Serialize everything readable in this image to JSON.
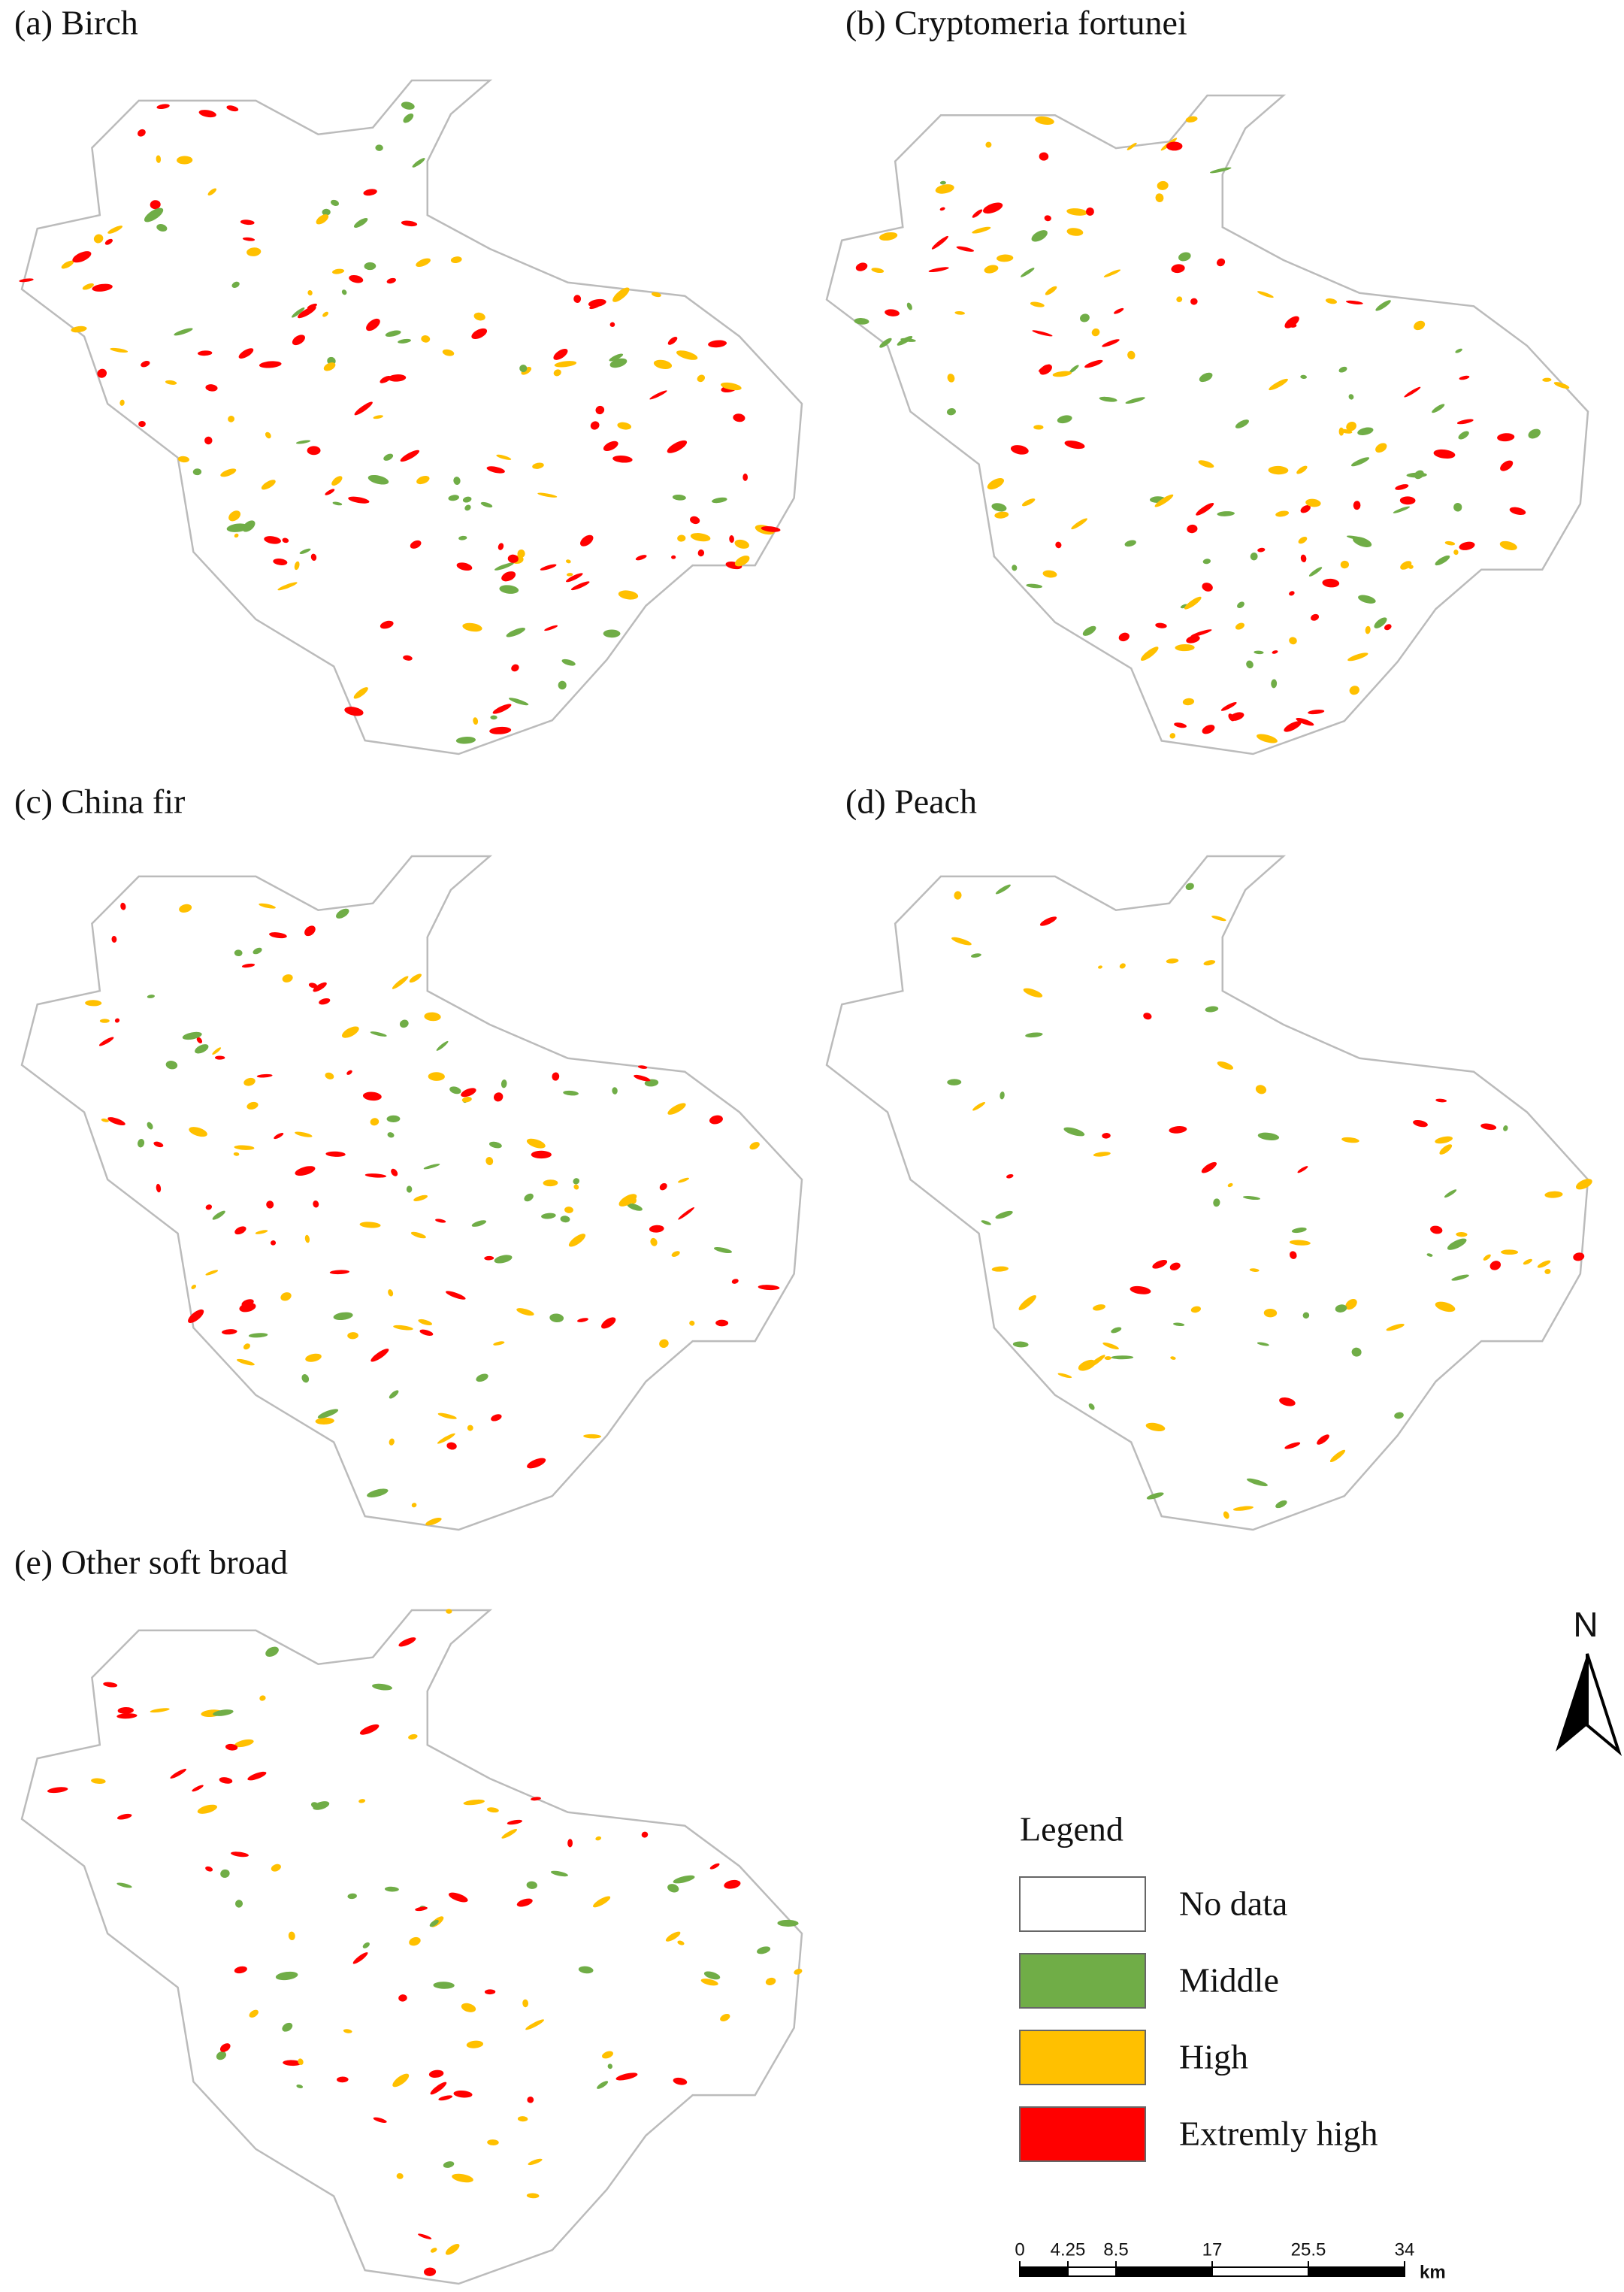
{
  "panels": [
    {
      "label": "(a) Birch"
    },
    {
      "label": "(b) Cryptomeria fortunei"
    },
    {
      "label": "(c) China fir"
    },
    {
      "label": "(d) Peach"
    },
    {
      "label": "(e) Other soft broad"
    }
  ],
  "north": "N",
  "legend": {
    "title": "Legend",
    "items": [
      {
        "label": "No data",
        "color": "#ffffff"
      },
      {
        "label": "Middle",
        "color": "#70ad47"
      },
      {
        "label": "High",
        "color": "#ffc000"
      },
      {
        "label": "Extremly high",
        "color": "#ff0000"
      }
    ]
  },
  "scale_bar": {
    "ticks": [
      0,
      4.25,
      8.5,
      17,
      25.5,
      34
    ],
    "unit": "km"
  }
}
